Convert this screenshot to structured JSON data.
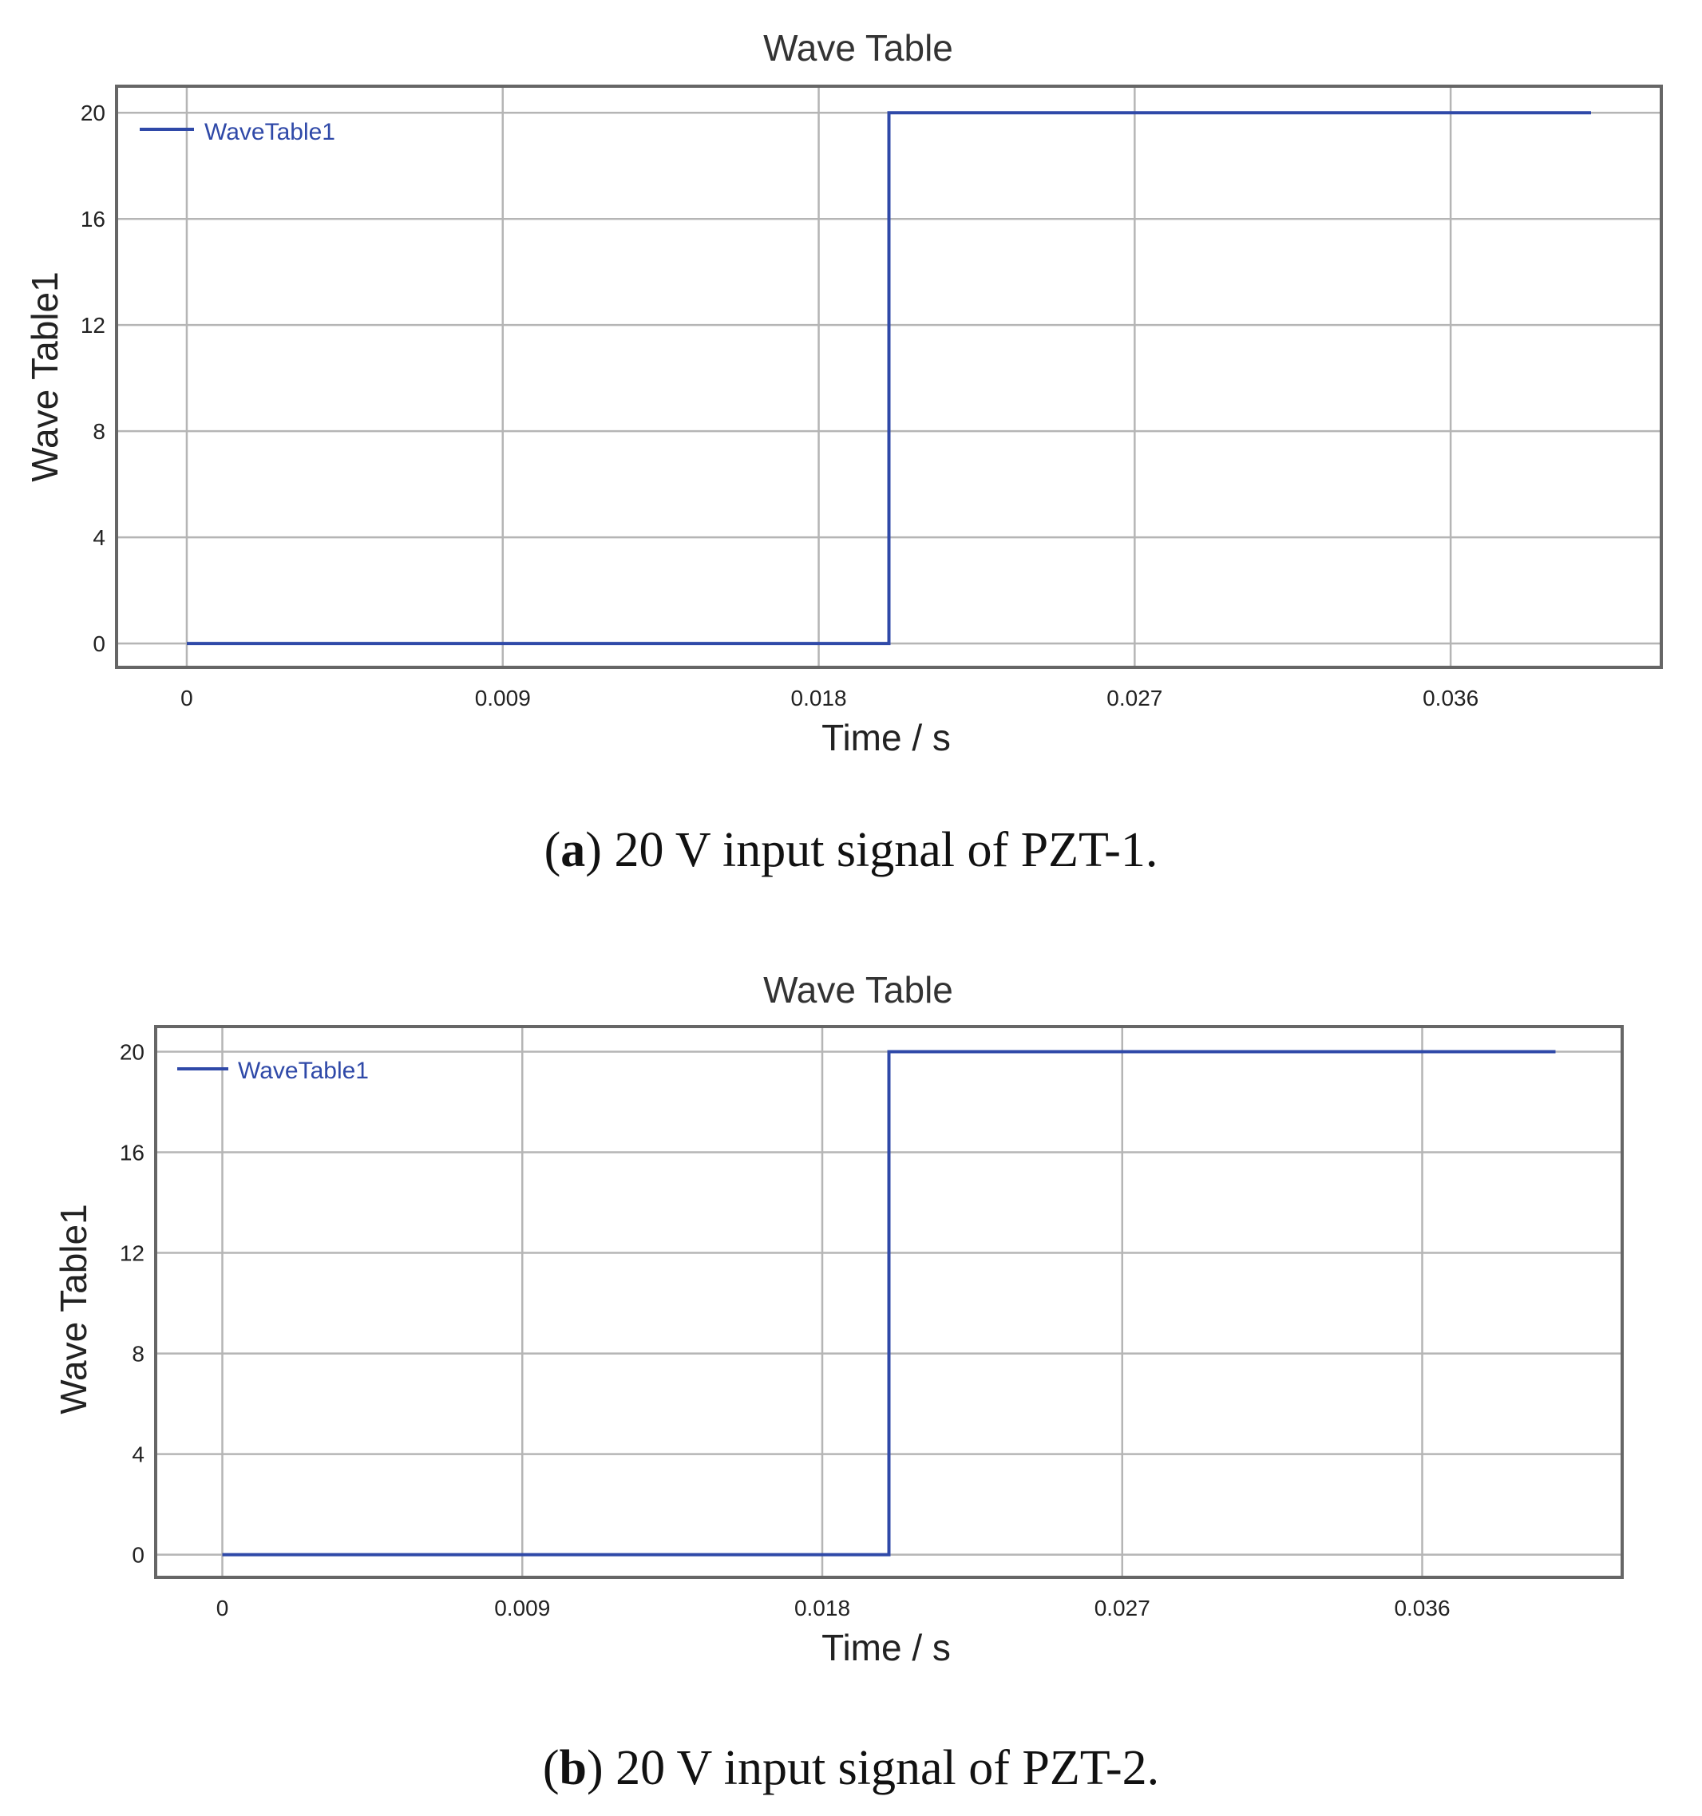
{
  "chart_data": [
    {
      "type": "line",
      "title": "Wave Table",
      "xlabel": "Time / s",
      "ylabel": "Wave Table1",
      "xlim": [
        -0.002,
        0.042
      ],
      "ylim": [
        -0.9,
        21
      ],
      "xticks": [
        0,
        0.009,
        0.018,
        0.027,
        0.036
      ],
      "xtick_labels": [
        "0",
        "0.009",
        "0.018",
        "0.027",
        "0.036"
      ],
      "yticks": [
        0,
        4,
        8,
        12,
        16,
        20
      ],
      "ytick_labels": [
        "0",
        "4",
        "8",
        "12",
        "16",
        "20"
      ],
      "grid": true,
      "legend": "top-left",
      "series": [
        {
          "name": "WaveTable1",
          "color": "#2f49a8",
          "x": [
            0,
            0.02,
            0.02,
            0.04
          ],
          "y": [
            0,
            0,
            20,
            20
          ]
        }
      ],
      "caption": {
        "letter": "a",
        "text": ") 20 V input signal of PZT-1."
      }
    },
    {
      "type": "line",
      "title": "Wave Table",
      "xlabel": "Time / s",
      "ylabel": "Wave Table1",
      "xlim": [
        -0.002,
        0.042
      ],
      "ylim": [
        -0.9,
        21
      ],
      "xticks": [
        0,
        0.009,
        0.018,
        0.027,
        0.036
      ],
      "xtick_labels": [
        "0",
        "0.009",
        "0.018",
        "0.027",
        "0.036"
      ],
      "yticks": [
        0,
        4,
        8,
        12,
        16,
        20
      ],
      "ytick_labels": [
        "0",
        "4",
        "8",
        "12",
        "16",
        "20"
      ],
      "grid": true,
      "legend": "top-left",
      "series": [
        {
          "name": "WaveTable1",
          "color": "#2f49a8",
          "x": [
            0,
            0.02,
            0.02,
            0.04
          ],
          "y": [
            0,
            0,
            20,
            20
          ]
        }
      ],
      "caption": {
        "letter": "b",
        "text": ") 20 V input signal of PZT-2."
      }
    }
  ]
}
